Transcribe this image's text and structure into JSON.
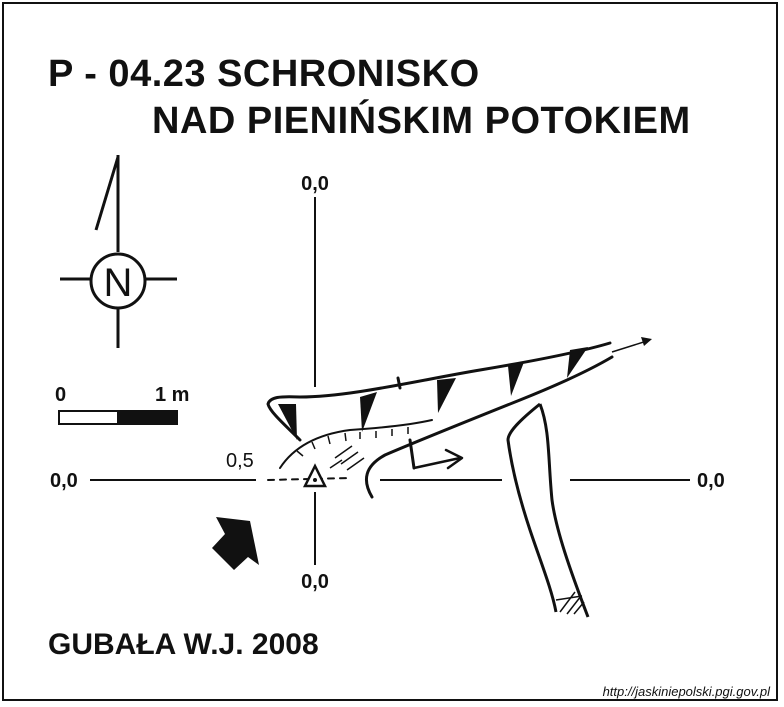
{
  "title": {
    "line1": "P - 04.23  SCHRONISKO",
    "line2": "NAD PIENIŃSKIM POTOKIEM"
  },
  "north": {
    "letter": "N"
  },
  "scale": {
    "start": "0",
    "end": "1 m"
  },
  "axes": {
    "top": "0,0",
    "bottom": "0,0",
    "left": "0,0",
    "right": "0,0"
  },
  "elevation": "0,5",
  "author": "GUBAŁA W.J. 2008",
  "source_url": "http://jaskiniepolski.pgi.gov.pl",
  "colors": {
    "ink": "#111111",
    "paper": "#ffffff"
  },
  "icons": [
    "north-arrow-icon",
    "entrance-arrow-icon",
    "survey-station-icon"
  ]
}
